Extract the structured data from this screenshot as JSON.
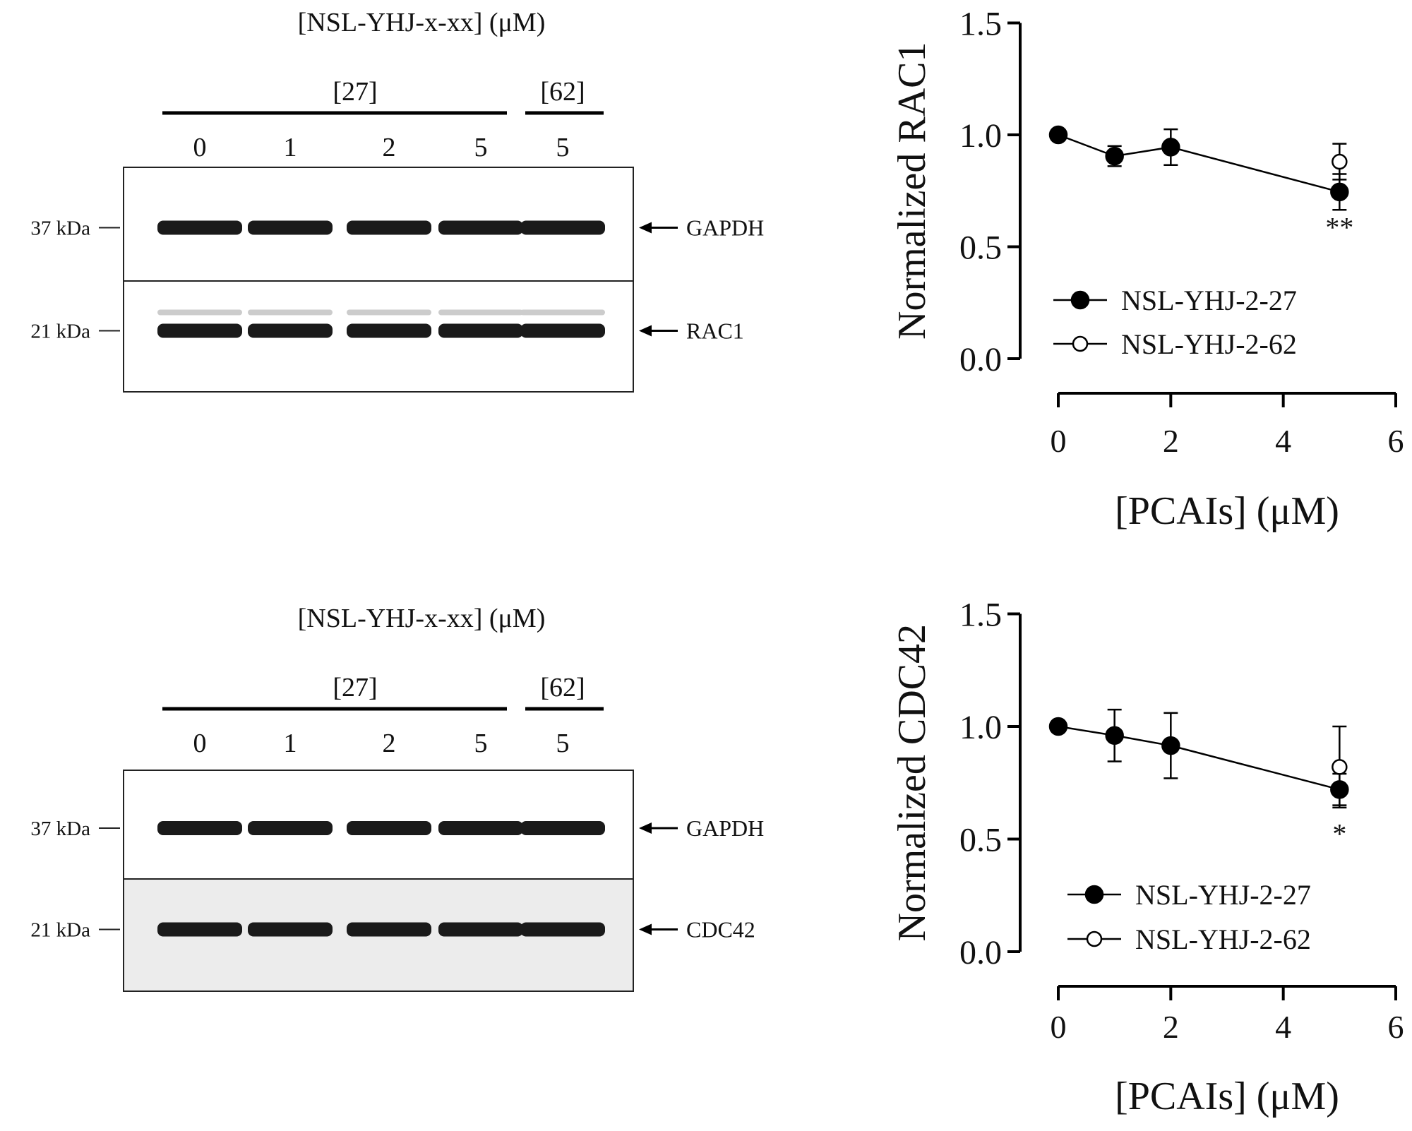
{
  "blots": [
    {
      "header": "[NSL-YHJ-x-xx] (μM)",
      "groups": [
        "[27]",
        "[62]"
      ],
      "lanes": [
        "0",
        "1",
        "2",
        "5",
        "5"
      ],
      "markers": [
        "37 kDa",
        "21 kDa"
      ],
      "bands": [
        "GAPDH",
        "RAC1"
      ]
    },
    {
      "header": "[NSL-YHJ-x-xx] (μM)",
      "groups": [
        "[27]",
        "[62]"
      ],
      "lanes": [
        "0",
        "1",
        "2",
        "5",
        "5"
      ],
      "markers": [
        "37 kDa",
        "21 kDa"
      ],
      "bands": [
        "GAPDH",
        "CDC42"
      ]
    }
  ],
  "chart_data": [
    {
      "type": "line",
      "ylabel": "Normalized RAC1",
      "xlabel": "[PCAIs] (μM)",
      "xlim": [
        0,
        6
      ],
      "ylim": [
        0,
        1.5
      ],
      "xticks": [
        "0",
        "2",
        "4",
        "6"
      ],
      "yticks": [
        "0.0",
        "0.5",
        "1.0",
        "1.5"
      ],
      "legend_position": "bottom-center",
      "series": [
        {
          "name": "NSL-YHJ-2-27",
          "marker": "filled-circle",
          "x": [
            0,
            1,
            2,
            5
          ],
          "y": [
            1.0,
            0.905,
            0.945,
            0.745
          ],
          "err": [
            0,
            0.045,
            0.08,
            0.08
          ]
        },
        {
          "name": "NSL-YHJ-2-62",
          "marker": "open-circle",
          "x": [
            5
          ],
          "y": [
            0.88
          ],
          "err": [
            0.08
          ]
        }
      ],
      "annotations": [
        {
          "x": 5,
          "text": "**"
        }
      ]
    },
    {
      "type": "line",
      "ylabel": "Normalized CDC42",
      "xlabel": "[PCAIs] (μM)",
      "xlim": [
        0,
        6
      ],
      "ylim": [
        0,
        1.5
      ],
      "xticks": [
        "0",
        "2",
        "4",
        "6"
      ],
      "yticks": [
        "0.0",
        "0.5",
        "1.0",
        "1.5"
      ],
      "legend_position": "bottom-center",
      "series": [
        {
          "name": "NSL-YHJ-2-27",
          "marker": "filled-circle",
          "x": [
            0,
            1,
            2,
            5
          ],
          "y": [
            1.0,
            0.96,
            0.915,
            0.72
          ],
          "err": [
            0,
            0.115,
            0.145,
            0.07
          ]
        },
        {
          "name": "NSL-YHJ-2-62",
          "marker": "open-circle",
          "x": [
            5
          ],
          "y": [
            0.82
          ],
          "err": [
            0.18
          ]
        }
      ],
      "annotations": [
        {
          "x": 5,
          "text": "*"
        }
      ]
    }
  ]
}
